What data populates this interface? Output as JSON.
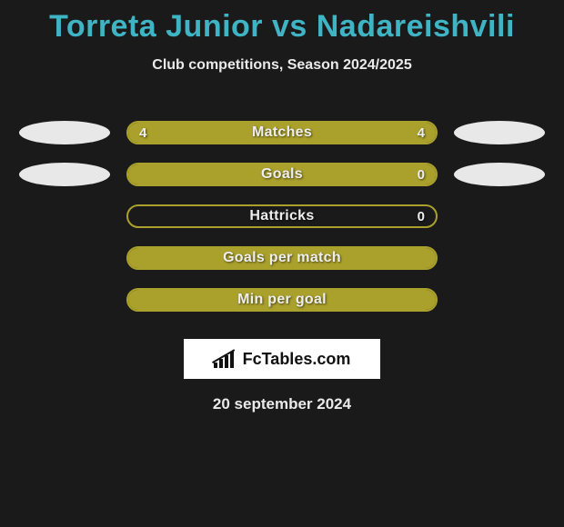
{
  "title": "Torreta Junior vs Nadareishvili",
  "subtitle": "Club competitions, Season 2024/2025",
  "date": "20 september 2024",
  "brand": "FcTables.com",
  "colors": {
    "background": "#1a1a1a",
    "title": "#3fb4c4",
    "text": "#eaeaea",
    "bar_fill": "#aaa02c",
    "bar_border": "#aaa02c",
    "badge": "#e8e8e8",
    "logo_bg": "#ffffff"
  },
  "stats": [
    {
      "label": "Matches",
      "left_value": "4",
      "right_value": "4",
      "left_fill_pct": 50,
      "right_fill_pct": 50,
      "show_left_badge": true,
      "show_right_badge": true,
      "show_values": true
    },
    {
      "label": "Goals",
      "left_value": "",
      "right_value": "0",
      "left_fill_pct": 100,
      "right_fill_pct": 0,
      "show_left_badge": true,
      "show_right_badge": true,
      "show_values": true
    },
    {
      "label": "Hattricks",
      "left_value": "",
      "right_value": "0",
      "left_fill_pct": 0,
      "right_fill_pct": 0,
      "show_left_badge": false,
      "show_right_badge": false,
      "show_values": true
    },
    {
      "label": "Goals per match",
      "left_value": "",
      "right_value": "",
      "left_fill_pct": 100,
      "right_fill_pct": 0,
      "show_left_badge": false,
      "show_right_badge": false,
      "show_values": false
    },
    {
      "label": "Min per goal",
      "left_value": "",
      "right_value": "",
      "left_fill_pct": 100,
      "right_fill_pct": 0,
      "show_left_badge": false,
      "show_right_badge": false,
      "show_values": false
    }
  ]
}
